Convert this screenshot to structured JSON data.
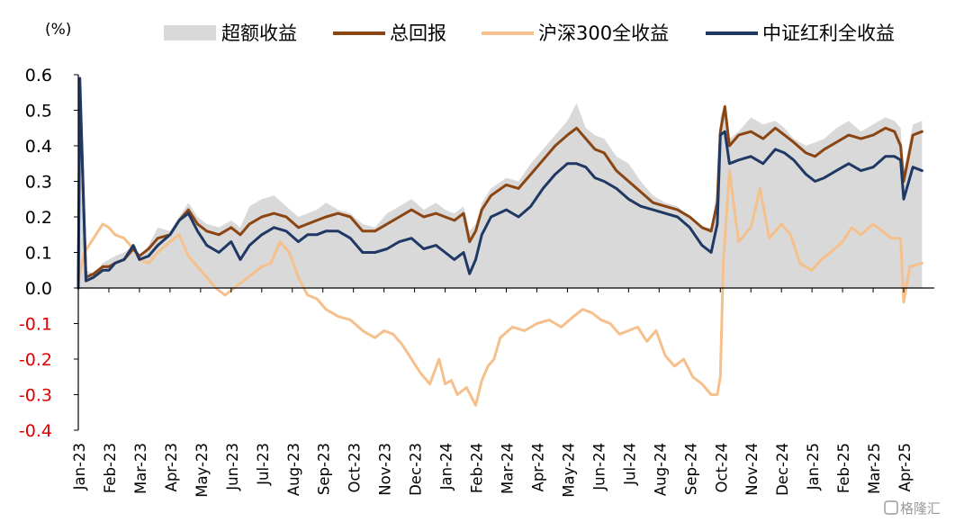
{
  "chart_data": {
    "type": "line",
    "unit_label": "(%)",
    "y_ticks": [
      "0.6",
      "0.5",
      "0.4",
      "0.3",
      "0.2",
      "0.1",
      "0.0",
      "-0.1",
      "-0.2",
      "-0.3",
      "-0.4"
    ],
    "ylim": [
      -0.4,
      0.6
    ],
    "x_ticks": [
      "Jan-23",
      "Feb-23",
      "Mar-23",
      "Apr-23",
      "May-23",
      "Jun-23",
      "Jul-23",
      "Aug-23",
      "Sep-23",
      "Oct-23",
      "Nov-23",
      "Dec-23",
      "Jan-24",
      "Feb-24",
      "Mar-24",
      "Apr-24",
      "May-24",
      "Jun-24",
      "Jul-24",
      "Aug-24",
      "Sep-24",
      "Oct-24",
      "Nov-24",
      "Dec-24",
      "Jan-25",
      "Feb-25",
      "Mar-25",
      "Apr-25"
    ],
    "grid": false,
    "legend_position": "top",
    "colors": {
      "excess": "#d9d9d9",
      "total": "#8b4513",
      "hs300": "#f5c08c",
      "dividend": "#1f3864",
      "negative_tick": "#e00000",
      "positive_tick": "#000000"
    },
    "series": [
      {
        "name": "超额收益",
        "kind": "area",
        "x": [
          0,
          0.05,
          0.25,
          0.5,
          0.8,
          1.0,
          1.2,
          1.5,
          1.8,
          2.0,
          2.3,
          2.6,
          3.0,
          3.3,
          3.6,
          3.9,
          4.2,
          4.6,
          5.0,
          5.3,
          5.6,
          6.0,
          6.4,
          6.8,
          7.2,
          7.5,
          7.8,
          8.1,
          8.5,
          8.9,
          9.3,
          9.7,
          10.1,
          10.5,
          10.9,
          11.3,
          11.7,
          12.0,
          12.3,
          12.6,
          12.8,
          13.0,
          13.2,
          13.5,
          14.0,
          14.4,
          14.8,
          15.2,
          15.6,
          16.0,
          16.3,
          16.6,
          16.9,
          17.2,
          17.6,
          18.0,
          18.4,
          18.8,
          19.2,
          19.6,
          20.0,
          20.4,
          20.7,
          20.9,
          21.0,
          21.15,
          21.3,
          21.6,
          22.0,
          22.4,
          22.8,
          23.1,
          23.4,
          23.8,
          24.1,
          24.4,
          24.8,
          25.2,
          25.6,
          26.0,
          26.4,
          26.7,
          26.9,
          27.0,
          27.3,
          27.6
        ],
        "values": [
          0.0,
          0.55,
          0.05,
          0.04,
          0.07,
          0.08,
          0.09,
          0.1,
          0.12,
          0.09,
          0.12,
          0.17,
          0.16,
          0.2,
          0.24,
          0.2,
          0.18,
          0.17,
          0.19,
          0.17,
          0.23,
          0.25,
          0.26,
          0.23,
          0.2,
          0.21,
          0.22,
          0.24,
          0.22,
          0.21,
          0.18,
          0.17,
          0.21,
          0.23,
          0.25,
          0.22,
          0.24,
          0.22,
          0.21,
          0.23,
          0.16,
          0.18,
          0.24,
          0.28,
          0.31,
          0.3,
          0.35,
          0.39,
          0.43,
          0.47,
          0.52,
          0.45,
          0.43,
          0.42,
          0.37,
          0.35,
          0.3,
          0.26,
          0.24,
          0.23,
          0.2,
          0.17,
          0.17,
          0.28,
          0.48,
          0.52,
          0.42,
          0.44,
          0.48,
          0.46,
          0.47,
          0.45,
          0.42,
          0.4,
          0.41,
          0.42,
          0.45,
          0.47,
          0.44,
          0.46,
          0.48,
          0.47,
          0.45,
          0.33,
          0.46,
          0.47
        ]
      },
      {
        "name": "总回报",
        "kind": "line",
        "x": [
          0,
          0.05,
          0.25,
          0.5,
          0.8,
          1.0,
          1.2,
          1.5,
          1.8,
          2.0,
          2.3,
          2.6,
          3.0,
          3.3,
          3.6,
          3.9,
          4.2,
          4.6,
          5.0,
          5.3,
          5.6,
          6.0,
          6.4,
          6.8,
          7.2,
          7.5,
          7.8,
          8.1,
          8.5,
          8.9,
          9.3,
          9.7,
          10.1,
          10.5,
          10.9,
          11.3,
          11.7,
          12.0,
          12.3,
          12.6,
          12.8,
          13.0,
          13.2,
          13.5,
          14.0,
          14.4,
          14.8,
          15.2,
          15.6,
          16.0,
          16.3,
          16.6,
          16.9,
          17.2,
          17.6,
          18.0,
          18.4,
          18.8,
          19.2,
          19.6,
          20.0,
          20.4,
          20.7,
          20.9,
          21.0,
          21.15,
          21.3,
          21.6,
          22.0,
          22.4,
          22.8,
          23.1,
          23.4,
          23.8,
          24.1,
          24.4,
          24.8,
          25.2,
          25.6,
          26.0,
          26.4,
          26.7,
          26.9,
          27.0,
          27.3,
          27.6
        ],
        "values": [
          0.0,
          0.56,
          0.03,
          0.04,
          0.06,
          0.06,
          0.07,
          0.08,
          0.11,
          0.09,
          0.11,
          0.14,
          0.15,
          0.19,
          0.22,
          0.18,
          0.16,
          0.15,
          0.17,
          0.15,
          0.18,
          0.2,
          0.21,
          0.2,
          0.17,
          0.18,
          0.19,
          0.2,
          0.21,
          0.2,
          0.16,
          0.16,
          0.18,
          0.2,
          0.22,
          0.2,
          0.21,
          0.2,
          0.19,
          0.21,
          0.13,
          0.16,
          0.22,
          0.26,
          0.29,
          0.28,
          0.32,
          0.36,
          0.4,
          0.43,
          0.45,
          0.42,
          0.39,
          0.38,
          0.33,
          0.3,
          0.27,
          0.24,
          0.23,
          0.22,
          0.2,
          0.17,
          0.16,
          0.24,
          0.44,
          0.51,
          0.4,
          0.43,
          0.44,
          0.42,
          0.45,
          0.43,
          0.41,
          0.38,
          0.37,
          0.39,
          0.41,
          0.43,
          0.42,
          0.43,
          0.45,
          0.44,
          0.4,
          0.3,
          0.43,
          0.44
        ]
      },
      {
        "name": "沪深300全收益",
        "kind": "line",
        "x": [
          0,
          0.2,
          0.5,
          0.8,
          1.0,
          1.2,
          1.5,
          1.8,
          2.0,
          2.3,
          2.6,
          3.0,
          3.3,
          3.6,
          3.9,
          4.2,
          4.5,
          4.8,
          5.1,
          5.4,
          5.7,
          6.0,
          6.3,
          6.6,
          6.9,
          7.2,
          7.5,
          7.8,
          8.1,
          8.5,
          8.9,
          9.3,
          9.7,
          10.0,
          10.3,
          10.6,
          10.9,
          11.2,
          11.5,
          11.8,
          12.0,
          12.2,
          12.4,
          12.7,
          13.0,
          13.2,
          13.4,
          13.6,
          13.8,
          14.2,
          14.6,
          15.0,
          15.4,
          15.8,
          16.2,
          16.5,
          16.8,
          17.1,
          17.4,
          17.7,
          18.0,
          18.3,
          18.6,
          18.9,
          19.2,
          19.5,
          19.8,
          20.1,
          20.4,
          20.7,
          20.9,
          21.0,
          21.1,
          21.3,
          21.6,
          22.0,
          22.3,
          22.6,
          23.0,
          23.3,
          23.6,
          24.0,
          24.3,
          24.6,
          25.0,
          25.3,
          25.6,
          26.0,
          26.3,
          26.6,
          26.9,
          27.0,
          27.2,
          27.6
        ],
        "values": [
          0.02,
          0.1,
          0.14,
          0.18,
          0.17,
          0.15,
          0.14,
          0.11,
          0.08,
          0.07,
          0.1,
          0.13,
          0.15,
          0.09,
          0.06,
          0.03,
          0.0,
          -0.02,
          0.0,
          0.02,
          0.04,
          0.06,
          0.07,
          0.13,
          0.1,
          0.03,
          -0.02,
          -0.03,
          -0.06,
          -0.08,
          -0.09,
          -0.12,
          -0.14,
          -0.12,
          -0.13,
          -0.16,
          -0.2,
          -0.24,
          -0.27,
          -0.2,
          -0.27,
          -0.26,
          -0.3,
          -0.28,
          -0.33,
          -0.26,
          -0.22,
          -0.2,
          -0.14,
          -0.11,
          -0.12,
          -0.1,
          -0.09,
          -0.11,
          -0.08,
          -0.06,
          -0.07,
          -0.09,
          -0.1,
          -0.13,
          -0.12,
          -0.11,
          -0.15,
          -0.12,
          -0.19,
          -0.22,
          -0.2,
          -0.25,
          -0.27,
          -0.3,
          -0.3,
          -0.25,
          0.07,
          0.33,
          0.13,
          0.17,
          0.28,
          0.14,
          0.18,
          0.15,
          0.07,
          0.05,
          0.08,
          0.1,
          0.13,
          0.17,
          0.15,
          0.18,
          0.16,
          0.14,
          0.14,
          -0.04,
          0.06,
          0.07
        ]
      },
      {
        "name": "中证红利全收益",
        "kind": "line",
        "x": [
          0,
          0.05,
          0.25,
          0.5,
          0.8,
          1.0,
          1.2,
          1.5,
          1.8,
          2.0,
          2.3,
          2.6,
          3.0,
          3.3,
          3.6,
          3.9,
          4.2,
          4.6,
          5.0,
          5.3,
          5.6,
          6.0,
          6.4,
          6.8,
          7.2,
          7.5,
          7.8,
          8.1,
          8.5,
          8.9,
          9.3,
          9.7,
          10.1,
          10.5,
          10.9,
          11.3,
          11.7,
          12.0,
          12.3,
          12.6,
          12.8,
          13.0,
          13.2,
          13.5,
          14.0,
          14.4,
          14.8,
          15.2,
          15.6,
          16.0,
          16.3,
          16.6,
          16.9,
          17.2,
          17.6,
          18.0,
          18.4,
          18.8,
          19.2,
          19.6,
          20.0,
          20.4,
          20.7,
          20.9,
          21.0,
          21.15,
          21.3,
          21.6,
          22.0,
          22.4,
          22.8,
          23.1,
          23.4,
          23.8,
          24.1,
          24.4,
          24.8,
          25.2,
          25.6,
          26.0,
          26.4,
          26.7,
          26.9,
          27.0,
          27.3,
          27.6
        ],
        "values": [
          0.0,
          0.59,
          0.02,
          0.03,
          0.05,
          0.05,
          0.07,
          0.08,
          0.12,
          0.08,
          0.09,
          0.12,
          0.15,
          0.19,
          0.21,
          0.16,
          0.12,
          0.1,
          0.13,
          0.08,
          0.12,
          0.15,
          0.17,
          0.16,
          0.13,
          0.15,
          0.15,
          0.16,
          0.16,
          0.14,
          0.1,
          0.1,
          0.11,
          0.13,
          0.14,
          0.11,
          0.12,
          0.1,
          0.08,
          0.1,
          0.04,
          0.08,
          0.15,
          0.2,
          0.22,
          0.2,
          0.23,
          0.28,
          0.32,
          0.35,
          0.35,
          0.34,
          0.31,
          0.3,
          0.28,
          0.25,
          0.23,
          0.22,
          0.21,
          0.2,
          0.17,
          0.12,
          0.1,
          0.18,
          0.43,
          0.44,
          0.35,
          0.36,
          0.37,
          0.35,
          0.39,
          0.38,
          0.36,
          0.32,
          0.3,
          0.31,
          0.33,
          0.35,
          0.33,
          0.34,
          0.37,
          0.37,
          0.36,
          0.25,
          0.34,
          0.33
        ]
      }
    ]
  },
  "watermark": "格隆汇"
}
